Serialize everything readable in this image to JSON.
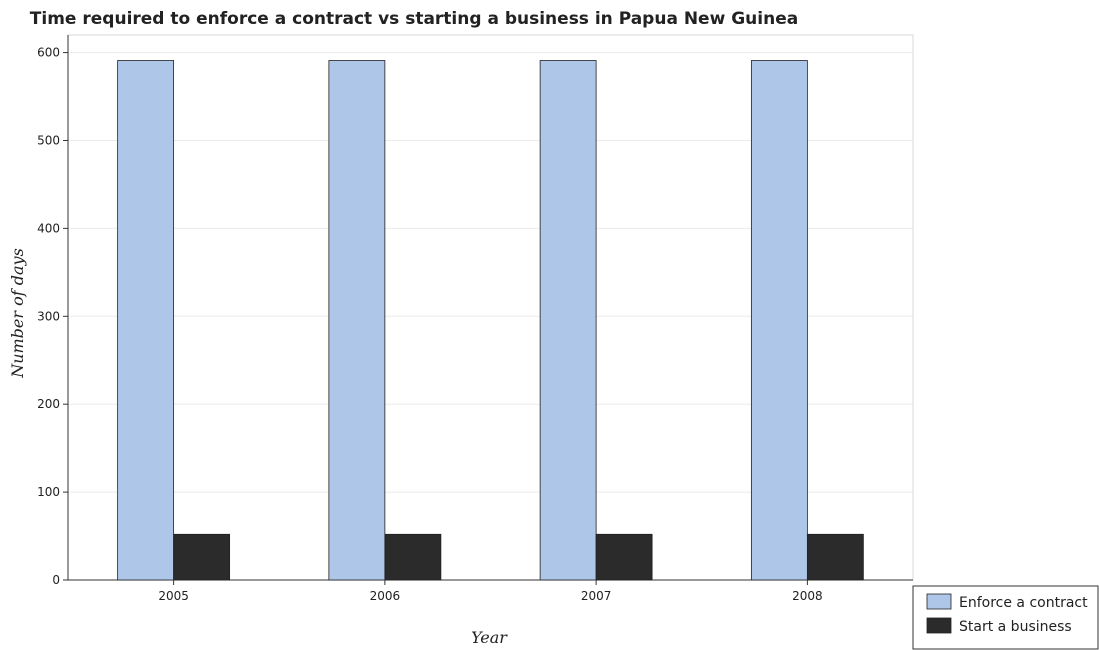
{
  "chart_data": {
    "type": "bar",
    "title": "Time required to enforce a contract vs starting a business in Papua New Guinea",
    "xlabel": "Year",
    "ylabel": "Number of days",
    "categories": [
      "2005",
      "2006",
      "2007",
      "2008"
    ],
    "series": [
      {
        "name": "Enforce a contract",
        "values": [
          591,
          591,
          591,
          591
        ],
        "color": "#aec7e8"
      },
      {
        "name": "Start a business",
        "values": [
          52,
          52,
          52,
          52
        ],
        "color": "#2b2b2b"
      }
    ],
    "ylim": [
      0,
      620
    ],
    "yticks": [
      0,
      100,
      200,
      300,
      400,
      500,
      600
    ],
    "grid": true,
    "legend_position": "bottom-right"
  }
}
